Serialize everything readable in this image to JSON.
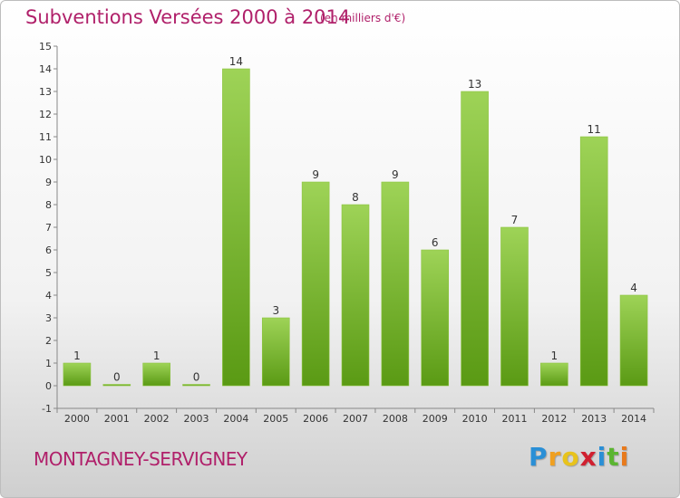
{
  "header": {
    "title": "Subventions Versées 2000 à 2014",
    "unit": "(en milliers d'€)"
  },
  "footer": {
    "commune": "MONTAGNEY-SERVIGNEY",
    "logo_letters": [
      "P",
      "r",
      "o",
      "x",
      "i",
      "t",
      "i"
    ],
    "logo_colors": [
      "#2a8fd6",
      "#f0a020",
      "#e8c31c",
      "#d02030",
      "#2a8fd6",
      "#5bb531",
      "#e87a1c"
    ]
  },
  "colors": {
    "accent": "#b0206a",
    "bar_light": "#9ed357",
    "bar_dark": "#5a9a14"
  },
  "chart_data": {
    "type": "bar",
    "categories": [
      "2000",
      "2001",
      "2002",
      "2003",
      "2004",
      "2005",
      "2006",
      "2007",
      "2008",
      "2009",
      "2010",
      "2011",
      "2012",
      "2013",
      "2014"
    ],
    "values": [
      1,
      0,
      1,
      0,
      14,
      3,
      9,
      8,
      9,
      6,
      13,
      7,
      1,
      11,
      4
    ],
    "title": "Subventions Versées 2000 à 2014",
    "ylim": [
      -1,
      15
    ],
    "yticks": [
      -1,
      0,
      1,
      2,
      3,
      4,
      5,
      6,
      7,
      8,
      9,
      10,
      11,
      12,
      13,
      14,
      15
    ],
    "grid": false,
    "legend": "none"
  }
}
